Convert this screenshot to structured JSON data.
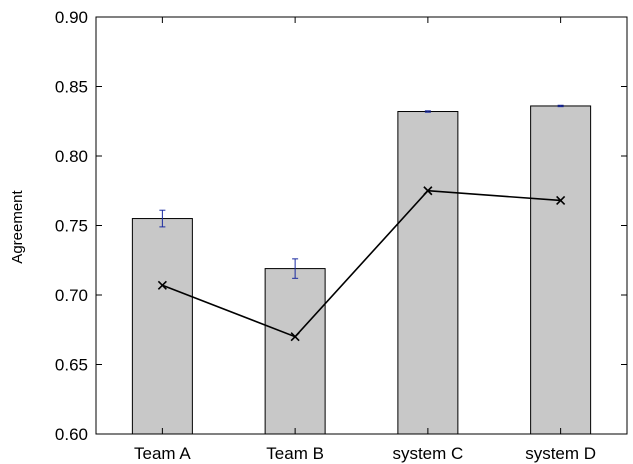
{
  "chart_data": {
    "type": "bar",
    "categories": [
      "Team A",
      "Team B",
      "system C",
      "system D"
    ],
    "ylabel": "Agreement",
    "xlabel": "",
    "ylim": [
      0.6,
      0.9
    ],
    "yticks": [
      "0.60",
      "0.65",
      "0.70",
      "0.75",
      "0.80",
      "0.85",
      "0.90"
    ],
    "grid": false,
    "series": [
      {
        "type": "bar",
        "values": [
          0.755,
          0.719,
          0.832,
          0.836
        ],
        "error": [
          0.006,
          0.007,
          0.0005,
          0.0005
        ],
        "color": "#c8c8c8",
        "error_color": "#1a2aa0"
      },
      {
        "type": "line",
        "marker": "x",
        "values": [
          0.707,
          0.67,
          0.775,
          0.768
        ],
        "color": "#000000"
      }
    ]
  }
}
